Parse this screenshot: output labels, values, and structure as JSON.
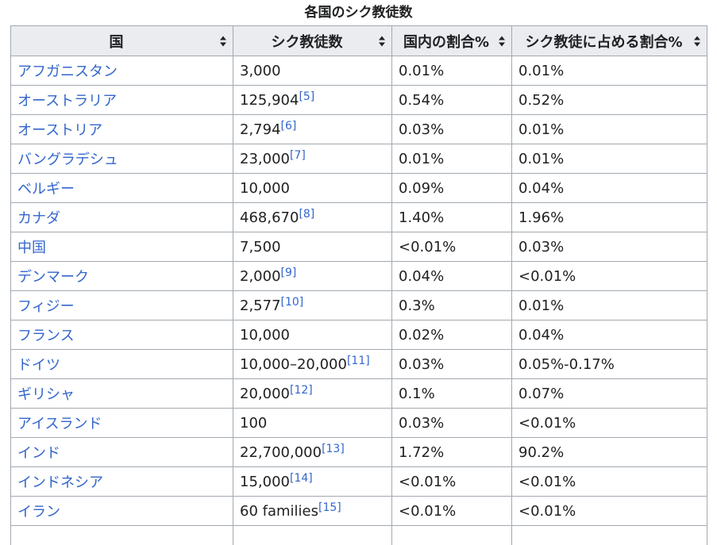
{
  "caption": "各国のシク教徒数",
  "columns": [
    {
      "label": "国"
    },
    {
      "label": "シク教徒数"
    },
    {
      "label": "国内の割合%"
    },
    {
      "label": "シク教徒に占める割合%"
    }
  ],
  "rows": [
    {
      "country": "アフガニスタン",
      "population": "3,000",
      "ref": "",
      "national_share": "0.01%",
      "sikh_share": "0.01%"
    },
    {
      "country": "オーストラリア",
      "population": "125,904",
      "ref": "[5]",
      "national_share": "0.54%",
      "sikh_share": "0.52%"
    },
    {
      "country": "オーストリア",
      "population": "2,794",
      "ref": "[6]",
      "national_share": "0.03%",
      "sikh_share": "0.01%"
    },
    {
      "country": "バングラデシュ",
      "population": "23,000",
      "ref": "[7]",
      "national_share": "0.01%",
      "sikh_share": "0.01%"
    },
    {
      "country": "ベルギー",
      "population": "10,000",
      "ref": "",
      "national_share": "0.09%",
      "sikh_share": "0.04%"
    },
    {
      "country": "カナダ",
      "population": "468,670",
      "ref": "[8]",
      "national_share": "1.40%",
      "sikh_share": "1.96%"
    },
    {
      "country": "中国",
      "population": "7,500",
      "ref": "",
      "national_share": "<0.01%",
      "sikh_share": "0.03%"
    },
    {
      "country": "デンマーク",
      "population": "2,000",
      "ref": "[9]",
      "national_share": "0.04%",
      "sikh_share": "<0.01%"
    },
    {
      "country": "フィジー",
      "population": "2,577",
      "ref": "[10]",
      "national_share": "0.3%",
      "sikh_share": "0.01%"
    },
    {
      "country": "フランス",
      "population": "10,000",
      "ref": "",
      "national_share": "0.02%",
      "sikh_share": "0.04%"
    },
    {
      "country": "ドイツ",
      "population": "10,000–20,000",
      "ref": "[11]",
      "national_share": "0.03%",
      "sikh_share": "0.05%-0.17%"
    },
    {
      "country": "ギリシャ",
      "population": "20,000",
      "ref": "[12]",
      "national_share": "0.1%",
      "sikh_share": "0.07%"
    },
    {
      "country": "アイスランド",
      "population": "100",
      "ref": "",
      "national_share": "0.03%",
      "sikh_share": "<0.01%"
    },
    {
      "country": "インド",
      "population": "22,700,000",
      "ref": "[13]",
      "national_share": "1.72%",
      "sikh_share": "90.2%"
    },
    {
      "country": "インドネシア",
      "population": "15,000",
      "ref": "[14]",
      "national_share": "<0.01%",
      "sikh_share": "<0.01%"
    },
    {
      "country": "イラン",
      "population": "60 families",
      "ref": "[15]",
      "national_share": "<0.01%",
      "sikh_share": "<0.01%"
    },
    {
      "country": "",
      "population": "",
      "ref": "",
      "national_share": "",
      "sikh_share": ""
    }
  ]
}
